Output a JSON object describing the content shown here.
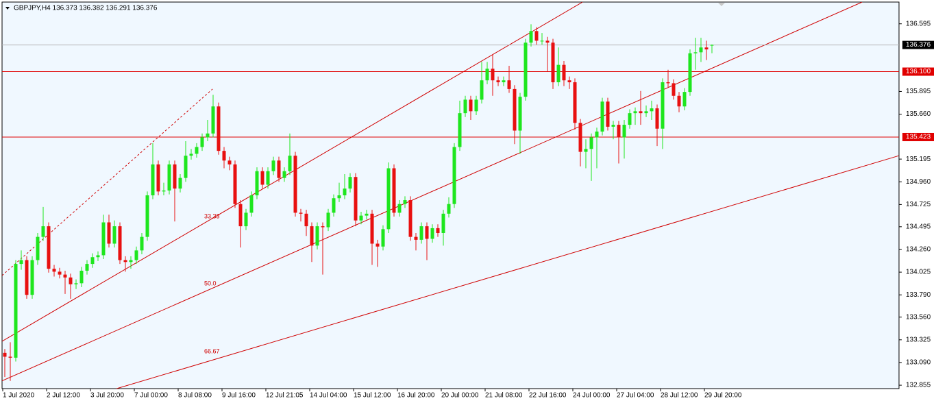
{
  "chart_data": {
    "type": "candlestick",
    "title": "GBPJPY,H4 136.373 136.382 136.291 136.376",
    "up_color": "#1ee61e",
    "down_color": "#e81010",
    "ylim": [
      132.82,
      136.82
    ],
    "yticks": [
      136.595,
      135.895,
      {
        "value": 135.66,
        "label": "135.660"
      },
      135.195,
      {
        "value": 134.96,
        "label": "134.960"
      },
      134.725,
      134.495,
      {
        "value": 134.26,
        "label": "134.260"
      },
      134.025,
      {
        "value": 133.79,
        "label": "133.790"
      },
      {
        "value": 133.56,
        "label": "133.560"
      },
      133.325,
      {
        "value": 133.09,
        "label": "133.090"
      },
      132.855
    ],
    "categories": [
      "1 Jul 2020",
      null,
      null,
      null,
      null,
      null,
      null,
      null,
      "2 Jul 12:00",
      null,
      null,
      null,
      null,
      null,
      null,
      null,
      "3 Jul 20:00",
      null,
      null,
      null,
      null,
      null,
      null,
      null,
      "7 Jul 00:00",
      null,
      null,
      null,
      null,
      null,
      null,
      null,
      "8 Jul 08:00",
      null,
      null,
      null,
      null,
      null,
      null,
      null,
      "9 Jul 16:00",
      null,
      null,
      null,
      null,
      null,
      null,
      null,
      "12 Jul 21:05",
      null,
      null,
      null,
      null,
      null,
      null,
      null,
      "14 Jul 04:00",
      null,
      null,
      null,
      null,
      null,
      null,
      null,
      "15 Jul 12:00",
      null,
      null,
      null,
      null,
      null,
      null,
      null,
      "16 Jul 20:00",
      null,
      null,
      null,
      null,
      null,
      null,
      null,
      "20 Jul 00:00",
      null,
      null,
      null,
      null,
      null,
      null,
      null,
      "21 Jul 08:00",
      null,
      null,
      null,
      null,
      null,
      null,
      null,
      "22 Jul 16:00",
      null,
      null,
      null,
      null,
      null,
      null,
      null,
      "24 Jul 00:00",
      null,
      null,
      null,
      null,
      null,
      null,
      null,
      "27 Jul 04:00",
      null,
      null,
      null,
      null,
      null,
      null,
      null,
      "28 Jul 12:00",
      null,
      null,
      null,
      null,
      null,
      null,
      null,
      "29 Jul 20:00",
      null
    ],
    "open": [
      133.19,
      133.15,
      133.14,
      134.11,
      134.15,
      133.79,
      134.15,
      134.39,
      134.5,
      134.06,
      134.03,
      134.0,
      133.97,
      133.9,
      133.91,
      134.04,
      134.11,
      134.18,
      134.2,
      134.54,
      134.32,
      134.5,
      134.15,
      134.13,
      134.15,
      134.25,
      134.39,
      134.82,
      135.14,
      134.86,
      134.87,
      135.14,
      134.89,
      135.0,
      135.23,
      135.25,
      135.32,
      135.42,
      135.46,
      135.74,
      135.28,
      135.18,
      135.14,
      134.73,
      134.5,
      134.64,
      134.82,
      135.07,
      134.93,
      135.07,
      135.18,
      135.0,
      135.07,
      135.23,
      134.64,
      134.63,
      134.5,
      134.3,
      134.5,
      134.49,
      134.64,
      134.79,
      134.82,
      134.89,
      135.01,
      134.56,
      134.61,
      134.63,
      134.32,
      134.29,
      134.47,
      135.1,
      134.64,
      134.73,
      134.77,
      134.39,
      134.36,
      134.5,
      134.37,
      134.48,
      134.43,
      134.63,
      134.73,
      135.32,
      135.67,
      135.81,
      135.69,
      135.81,
      136.01,
      136.13,
      136.01,
      135.99,
      136.01,
      135.92,
      135.49,
      135.84,
      136.4,
      136.52,
      136.42,
      136.42,
      136.4,
      135.99,
      136.17,
      136.01,
      135.99,
      135.57,
      135.27,
      135.3,
      135.42,
      135.48,
      135.79,
      135.53,
      135.55,
      135.42,
      135.55,
      135.67,
      135.69,
      135.67,
      135.69,
      135.72,
      135.51,
      135.99,
      135.98,
      135.85,
      135.74,
      135.89,
      136.29,
      136.3,
      136.35,
      136.373
    ],
    "high": [
      133.23,
      133.3,
      134.15,
      134.25,
      134.19,
      134.19,
      134.43,
      134.7,
      134.54,
      134.1,
      134.07,
      134.04,
      134.01,
      133.95,
      134.08,
      134.15,
      134.22,
      134.24,
      134.62,
      134.62,
      134.56,
      134.54,
      134.19,
      134.19,
      134.29,
      134.43,
      134.86,
      135.36,
      135.18,
      134.95,
      135.18,
      135.18,
      135.04,
      135.38,
      135.3,
      135.36,
      135.46,
      135.6,
      135.86,
      135.78,
      135.32,
      135.22,
      135.18,
      134.77,
      134.68,
      134.86,
      135.11,
      135.11,
      135.11,
      135.22,
      135.22,
      135.11,
      135.46,
      135.27,
      134.68,
      134.67,
      134.54,
      134.54,
      134.54,
      134.68,
      134.83,
      134.95,
      135.04,
      135.05,
      135.05,
      134.65,
      134.67,
      134.67,
      134.36,
      134.51,
      135.16,
      135.14,
      134.77,
      134.81,
      134.81,
      134.43,
      134.54,
      134.54,
      134.52,
      134.52,
      134.67,
      134.8,
      135.36,
      135.8,
      135.85,
      135.85,
      135.85,
      136.2,
      136.2,
      136.28,
      136.05,
      136.05,
      136.16,
      135.96,
      135.88,
      136.44,
      136.59,
      136.56,
      136.5,
      136.46,
      136.44,
      136.35,
      136.21,
      136.05,
      136.03,
      135.61,
      135.4,
      135.46,
      135.52,
      135.83,
      135.83,
      135.59,
      135.59,
      135.6,
      135.71,
      135.73,
      135.9,
      135.75,
      135.8,
      135.76,
      136.03,
      136.12,
      136.02,
      135.89,
      135.93,
      136.33,
      136.45,
      136.45,
      136.42,
      136.382
    ],
    "low": [
      132.94,
      132.9,
      133.1,
      134.05,
      133.75,
      133.75,
      134.1,
      134.35,
      134.02,
      133.98,
      133.96,
      133.8,
      133.75,
      133.85,
      133.87,
      134.0,
      134.07,
      134.14,
      134.16,
      134.28,
      134.28,
      134.11,
      134.03,
      134.06,
      134.11,
      134.21,
      134.35,
      134.78,
      134.82,
      134.82,
      134.83,
      134.55,
      134.85,
      134.96,
      135.19,
      135.21,
      135.28,
      135.38,
      135.42,
      135.24,
      135.1,
      135.08,
      134.69,
      134.28,
      134.46,
      134.6,
      134.78,
      134.89,
      134.89,
      135.03,
      134.96,
      134.96,
      135.03,
      134.6,
      134.55,
      134.4,
      134.13,
      134.26,
      134.0,
      134.45,
      134.6,
      134.75,
      134.78,
      134.85,
      134.5,
      134.52,
      134.57,
      134.1,
      134.08,
      134.25,
      134.43,
      134.6,
      134.6,
      134.69,
      134.35,
      134.25,
      134.32,
      134.15,
      134.33,
      134.39,
      134.3,
      134.59,
      134.69,
      135.28,
      135.63,
      135.6,
      135.65,
      135.77,
      135.97,
      135.85,
      135.95,
      135.95,
      135.88,
      135.35,
      135.25,
      135.8,
      136.36,
      136.38,
      136.38,
      136.1,
      135.92,
      135.95,
      135.95,
      135.92,
      135.5,
      135.12,
      135.1,
      134.97,
      135.1,
      135.44,
      135.49,
      135.4,
      135.15,
      135.2,
      135.51,
      135.55,
      135.55,
      135.63,
      135.6,
      135.33,
      135.3,
      135.94,
      135.81,
      135.68,
      135.7,
      135.85,
      136.12,
      136.2,
      136.22,
      136.291
    ],
    "close": [
      133.15,
      133.14,
      134.11,
      134.15,
      133.79,
      134.15,
      134.39,
      134.5,
      134.06,
      134.03,
      134.0,
      133.97,
      133.9,
      133.91,
      134.04,
      134.11,
      134.18,
      134.2,
      134.54,
      134.32,
      134.5,
      134.15,
      134.13,
      134.15,
      134.25,
      134.39,
      134.82,
      135.14,
      134.86,
      134.87,
      135.14,
      134.89,
      135.0,
      135.23,
      135.25,
      135.32,
      135.42,
      135.46,
      135.74,
      135.28,
      135.18,
      135.14,
      134.73,
      134.5,
      134.64,
      134.82,
      135.07,
      134.93,
      135.07,
      135.18,
      135.0,
      135.07,
      135.23,
      134.64,
      134.63,
      134.5,
      134.3,
      134.5,
      134.49,
      134.64,
      134.79,
      134.82,
      134.89,
      135.01,
      134.56,
      134.61,
      134.63,
      134.32,
      134.29,
      134.47,
      135.1,
      134.64,
      134.73,
      134.77,
      134.39,
      134.36,
      134.5,
      134.37,
      134.48,
      134.43,
      134.63,
      134.73,
      135.32,
      135.67,
      135.81,
      135.69,
      135.81,
      136.01,
      136.13,
      136.01,
      135.99,
      136.01,
      135.92,
      135.49,
      135.84,
      136.4,
      136.52,
      136.42,
      136.42,
      136.4,
      135.99,
      136.17,
      136.01,
      135.99,
      135.57,
      135.27,
      135.3,
      135.42,
      135.48,
      135.79,
      135.53,
      135.55,
      135.42,
      135.55,
      135.67,
      135.69,
      135.67,
      135.69,
      135.72,
      135.51,
      135.99,
      135.98,
      135.85,
      135.74,
      135.89,
      136.29,
      136.3,
      136.35,
      136.33,
      136.376
    ],
    "levels": [
      {
        "value": 136.376,
        "color": "#b4b4b4",
        "box": "#000000"
      },
      {
        "value": 136.1,
        "label": "136.100",
        "color": "#e00000",
        "box": "#e00000"
      },
      {
        "value": 135.423,
        "color": "#e00000",
        "box": "#e00000"
      }
    ],
    "trendlines": [
      {
        "x": [
          -0.5,
          105.4
        ],
        "y": [
          133.31,
          136.82
        ],
        "color": "#d00000"
      },
      {
        "x": [
          -0.5,
          156.4
        ],
        "y": [
          132.9,
          136.82
        ],
        "color": "#d00000"
      },
      {
        "x": [
          20.4,
          163.1
        ],
        "y": [
          132.82,
          135.23
        ],
        "color": "#d00000"
      },
      {
        "x": [
          -0.5,
          37.9
        ],
        "y": [
          133.99,
          135.92
        ],
        "color": "#d00000",
        "dashed": true
      }
    ],
    "fib_labels": [
      "33.33",
      {
        "value": 50,
        "label": "50.0"
      },
      "66.67"
    ]
  }
}
